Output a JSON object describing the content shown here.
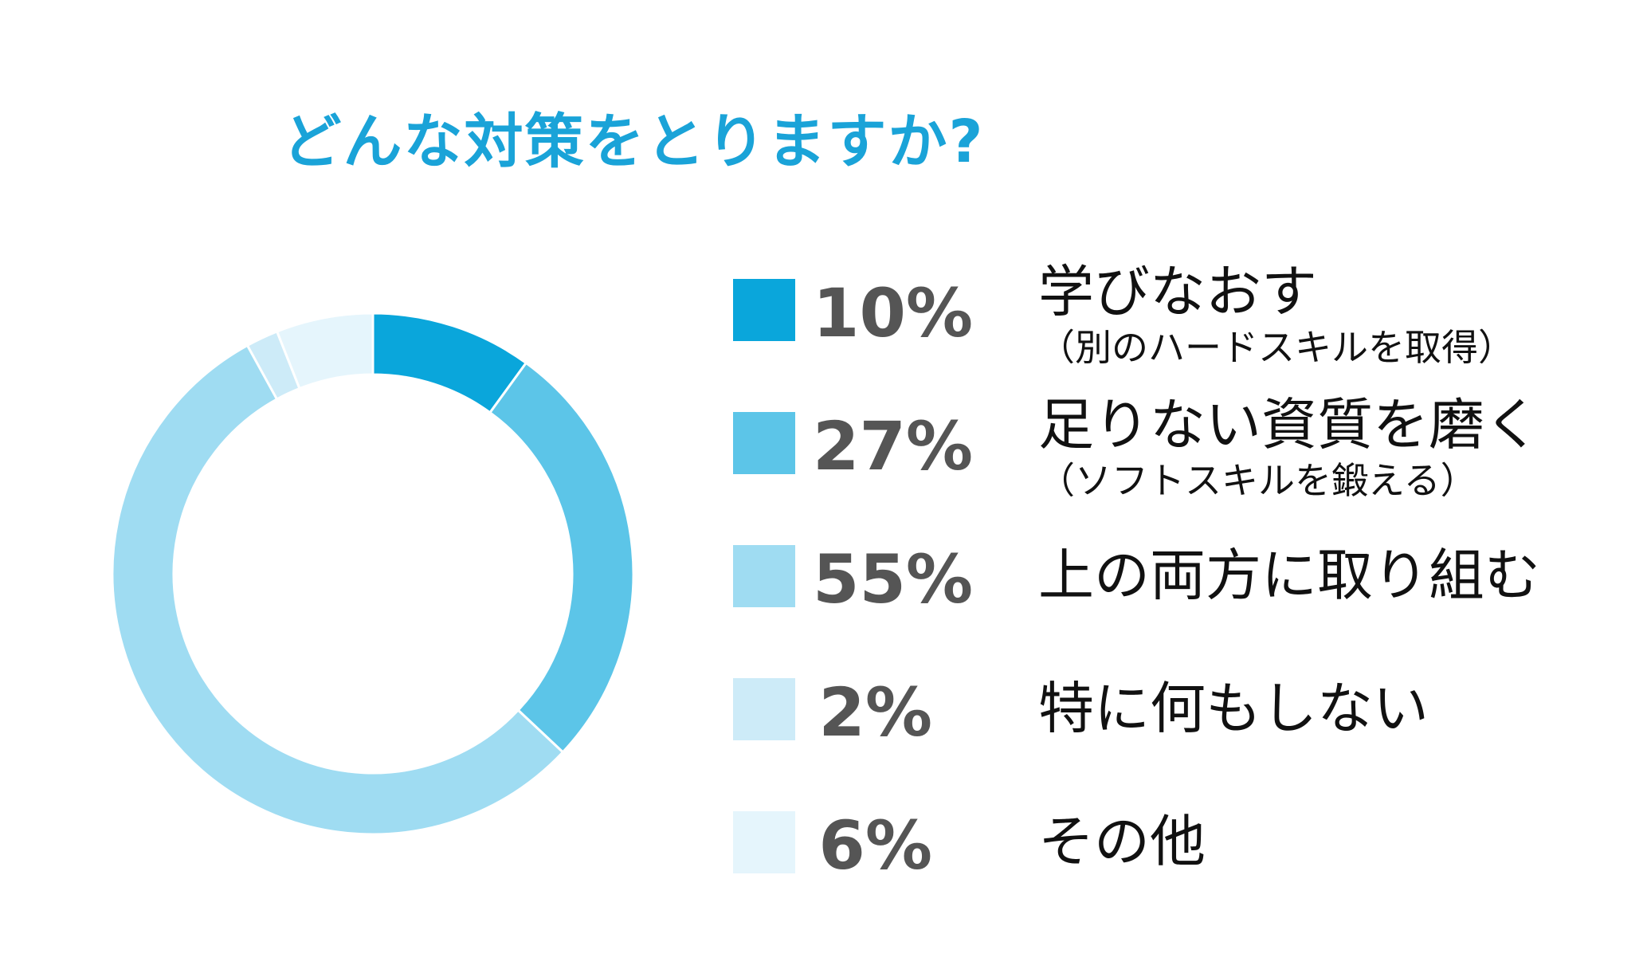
{
  "chart_data": {
    "type": "pie",
    "title": "どんな対策をとりますか?",
    "slices": [
      {
        "label": "学びなおす",
        "sublabel": "（別のハードスキルを取得）",
        "value": 10,
        "value_label": "10%",
        "color": "#0aa6db"
      },
      {
        "label": "足りない資質を磨く",
        "sublabel": "（ソフトスキルを鍛える）",
        "value": 27,
        "value_label": "27%",
        "color": "#5cc5e8"
      },
      {
        "label": "上の両方に取り組む",
        "sublabel": "",
        "value": 55,
        "value_label": "55%",
        "color": "#9fdcf2"
      },
      {
        "label": "特に何もしない",
        "sublabel": "",
        "value": 2,
        "value_label": "2%",
        "color": "#cdebf8"
      },
      {
        "label": "その他",
        "sublabel": "",
        "value": 6,
        "value_label": "6%",
        "color": "#e5f5fc"
      }
    ]
  }
}
